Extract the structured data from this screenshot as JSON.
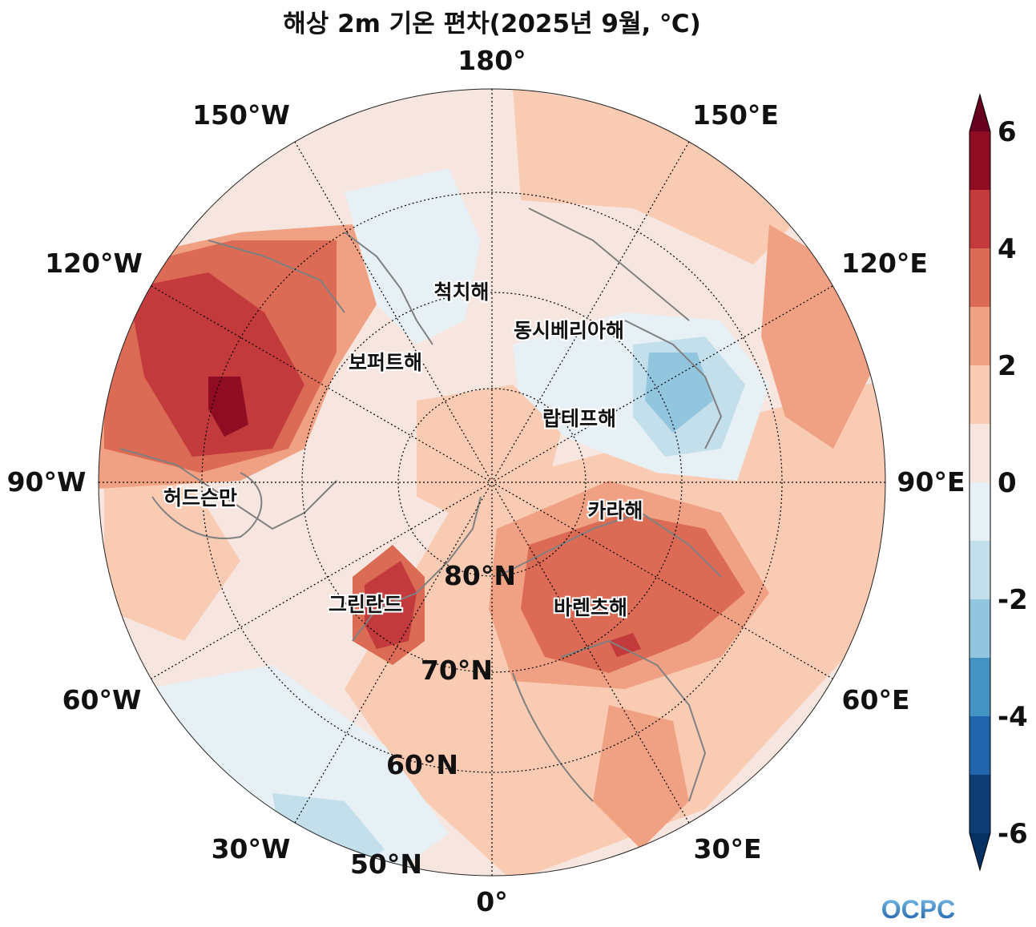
{
  "title": "해상 2m 기온 편차(2025년 9월, ℃)",
  "longitude_labels": {
    "lon_180": "180°",
    "lon_150e": "150°E",
    "lon_120e": "120°E",
    "lon_90e": "90°E",
    "lon_60e": "60°E",
    "lon_30e": "30°E",
    "lon_0": "0°",
    "lon_30w": "30°W",
    "lon_60w": "60°W",
    "lon_90w": "90°W",
    "lon_120w": "120°W",
    "lon_150w": "150°W"
  },
  "latitude_labels": {
    "lat_80": "80°N",
    "lat_70": "70°N",
    "lat_60": "60°N",
    "lat_50": "50°N"
  },
  "sea_labels": {
    "chukchi": "척치해",
    "east_siberian": "동시베리아해",
    "beaufort": "보퍼트해",
    "laptev": "랍테프해",
    "hudson": "허드슨만",
    "kara": "카라해",
    "greenland": "그린란드",
    "barents": "바렌츠해"
  },
  "colorbar": {
    "ticks": [
      "6",
      "4",
      "2",
      "0",
      "-2",
      "-4",
      "-6"
    ],
    "levels": [
      -6,
      -5,
      -4,
      -3,
      -2,
      -1,
      0,
      1,
      2,
      3,
      4,
      5,
      6
    ],
    "colors": [
      "#0d3d73",
      "#2166ac",
      "#4393c3",
      "#92c5de",
      "#c4dfec",
      "#e7f0f4",
      "#f7e6e0",
      "#f9cbb3",
      "#f1a183",
      "#db6b55",
      "#c23a3c",
      "#8f0c23"
    ],
    "extend": "both"
  },
  "logo": {
    "text": "OCPC"
  }
}
